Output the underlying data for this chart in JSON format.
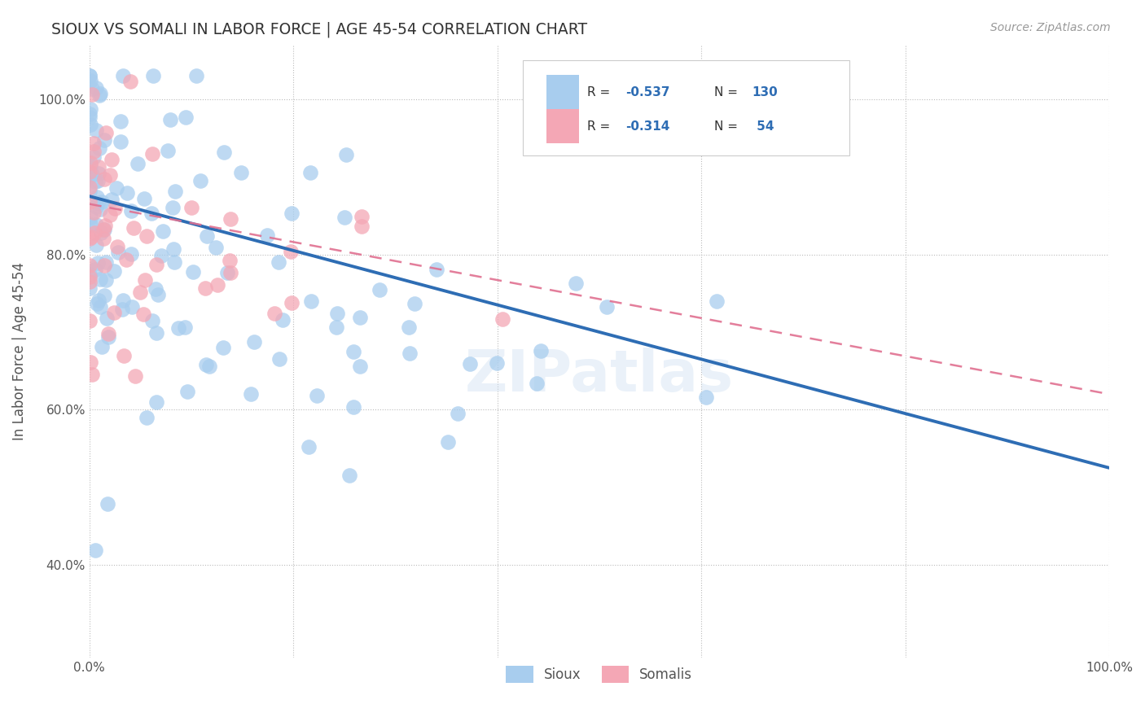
{
  "title": "SIOUX VS SOMALI IN LABOR FORCE | AGE 45-54 CORRELATION CHART",
  "source_text": "Source: ZipAtlas.com",
  "ylabel": "In Labor Force | Age 45-54",
  "xlim": [
    0.0,
    1.0
  ],
  "ylim": [
    0.28,
    1.07
  ],
  "y_ticks": [
    0.4,
    0.6,
    0.8,
    1.0
  ],
  "y_tick_labels": [
    "40.0%",
    "60.0%",
    "80.0%",
    "100.0%"
  ],
  "x_tick_labels": [
    "0.0%",
    "100.0%"
  ],
  "sioux_R": -0.537,
  "sioux_N": 130,
  "somali_R": -0.314,
  "somali_N": 54,
  "sioux_color": "#A8CDEE",
  "somali_color": "#F4A7B5",
  "sioux_line_color": "#2E6DB4",
  "somali_line_color": "#E07090",
  "background_color": "#FFFFFF",
  "grid_color": "#CCCCCC",
  "watermark": "ZIPatlas",
  "sioux_line_x0": 0.0,
  "sioux_line_y0": 0.875,
  "sioux_line_x1": 1.0,
  "sioux_line_y1": 0.525,
  "somali_line_x0": 0.0,
  "somali_line_y0": 0.865,
  "somali_line_x1": 1.0,
  "somali_line_y1": 0.62,
  "legend_R_color": "#2E6DB4",
  "legend_N_color": "#2E6DB4",
  "legend_label_color": "#333333"
}
